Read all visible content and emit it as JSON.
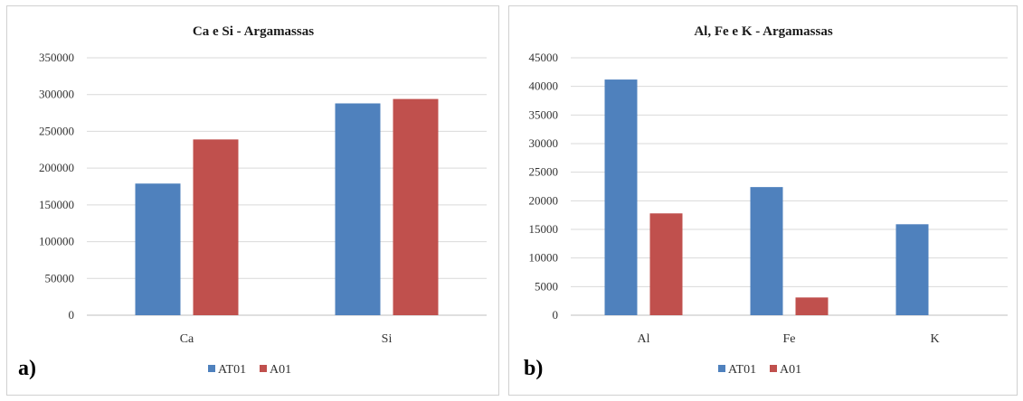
{
  "colors": {
    "AT01": "#4f81bd",
    "A01": "#c0504d"
  },
  "chart_data": [
    {
      "type": "bar",
      "panel_label": "a)",
      "title": "Ca e Si - Argamassas",
      "categories": [
        "Ca",
        "Si"
      ],
      "series": [
        {
          "name": "AT01",
          "values": [
            179000,
            288000
          ]
        },
        {
          "name": "A01",
          "values": [
            239000,
            294000
          ]
        }
      ],
      "ylim": [
        0,
        350000
      ],
      "yticks": [
        "0",
        "50000",
        "100000",
        "150000",
        "200000",
        "250000",
        "300000",
        "350000"
      ],
      "xlabel": "",
      "ylabel": "",
      "grid": true,
      "legend": "bottom"
    },
    {
      "type": "bar",
      "panel_label": "b)",
      "title": "Al, Fe e K - Argamassas",
      "categories": [
        "Al",
        "Fe",
        "K"
      ],
      "series": [
        {
          "name": "AT01",
          "values": [
            41200,
            22400,
            15900
          ]
        },
        {
          "name": "A01",
          "values": [
            17800,
            3100,
            0
          ]
        }
      ],
      "ylim": [
        0,
        45000
      ],
      "yticks": [
        "0",
        "5000",
        "10000",
        "15000",
        "20000",
        "25000",
        "30000",
        "35000",
        "40000",
        "45000"
      ],
      "xlabel": "",
      "ylabel": "",
      "grid": true,
      "legend": "bottom"
    }
  ]
}
